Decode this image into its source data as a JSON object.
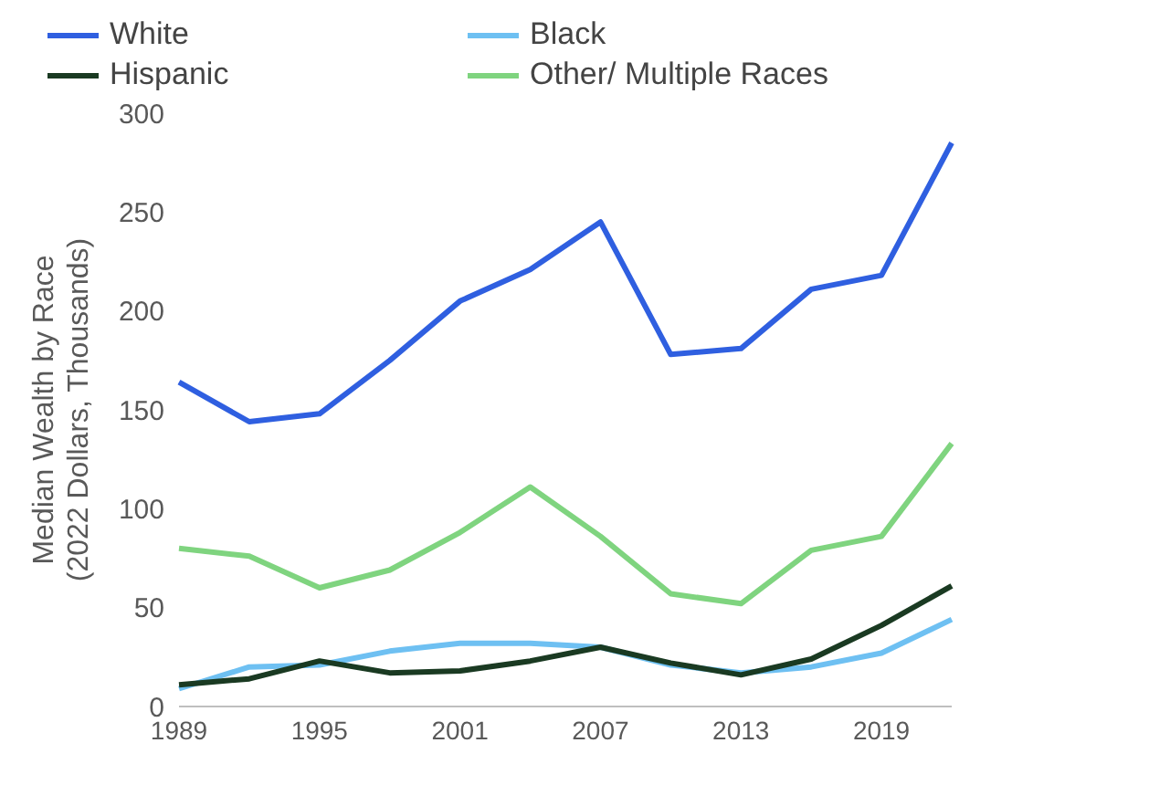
{
  "chart_data": {
    "type": "line",
    "ylabel": "Median Wealth by Race\n(2022 Dollars, Thousands)",
    "categories": [
      "1989",
      null,
      "1995",
      null,
      "2001",
      null,
      "2007",
      null,
      "2013",
      null,
      "2019",
      null
    ],
    "series": [
      {
        "name": "White",
        "color": "#2f5fe0",
        "values": [
          164,
          144,
          148,
          175,
          205,
          221,
          245,
          178,
          181,
          211,
          218,
          285
        ]
      },
      {
        "name": "Black",
        "color": "#6ec0f2",
        "values": [
          9,
          20,
          21,
          28,
          32,
          32,
          30,
          21,
          17,
          20,
          27,
          44
        ]
      },
      {
        "name": "Hispanic",
        "color": "#1a3a22",
        "values": [
          11,
          14,
          23,
          17,
          18,
          23,
          30,
          22,
          16,
          24,
          41,
          61
        ]
      },
      {
        "name": "Other/ Multiple Races",
        "color": "#7fd47f",
        "values": [
          80,
          76,
          60,
          69,
          88,
          111,
          86,
          57,
          52,
          79,
          86,
          133
        ]
      }
    ],
    "ylim": [
      0,
      300
    ],
    "yticks": [
      0,
      50,
      100,
      150,
      200,
      250,
      300
    ],
    "grid": false,
    "legend": "top",
    "marker": "none",
    "line_style": "solid"
  }
}
